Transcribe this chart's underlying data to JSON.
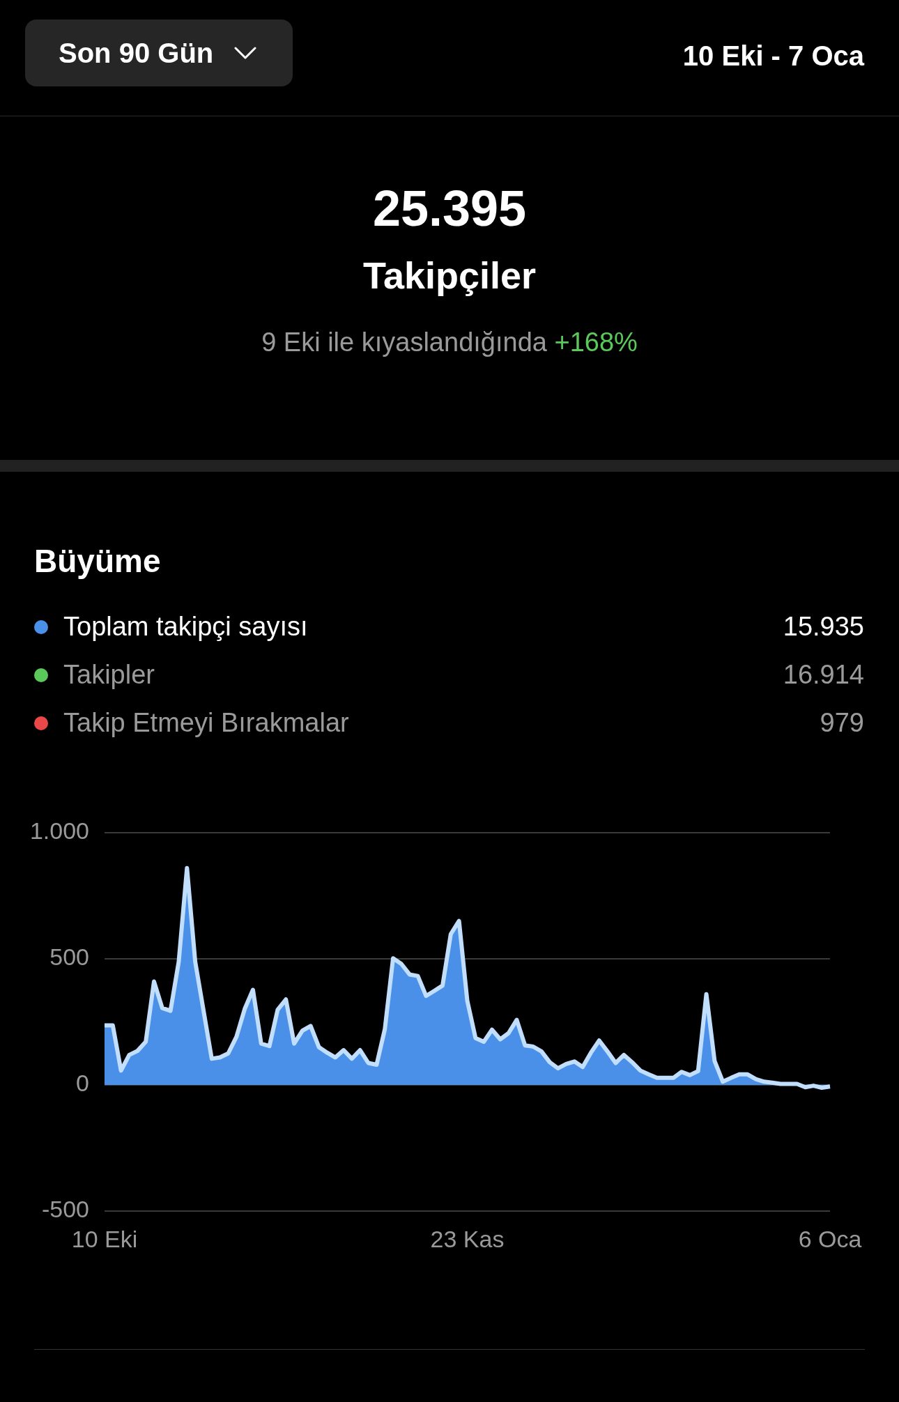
{
  "chart_data": {
    "type": "area",
    "title": "Büyüme",
    "annotations": [
      "Son 90 Gün",
      "10 Eki - 7 Oca",
      "25.395",
      "Takipçiler",
      "9 Eki ile kıyaslandığında +168%",
      "15.935",
      "16.914",
      "979"
    ],
    "categories": [
      "10 Eki",
      null,
      null,
      null,
      null,
      null,
      null,
      null,
      null,
      null,
      null,
      null,
      null,
      null,
      null,
      null,
      null,
      null,
      null,
      null,
      null,
      null,
      null,
      null,
      null,
      null,
      null,
      null,
      null,
      null,
      null,
      null,
      null,
      null,
      null,
      null,
      null,
      null,
      null,
      null,
      null,
      null,
      null,
      null,
      "23 Kas",
      null,
      null,
      null,
      null,
      null,
      null,
      null,
      null,
      null,
      null,
      null,
      null,
      null,
      null,
      null,
      null,
      null,
      null,
      null,
      null,
      null,
      null,
      null,
      null,
      null,
      null,
      null,
      null,
      null,
      null,
      null,
      null,
      null,
      null,
      null,
      null,
      null,
      null,
      null,
      null,
      null,
      null,
      null,
      "6 Oca"
    ],
    "series": [
      {
        "name": "Toplam takipçi sayısı",
        "color": "#4a90e8",
        "values": [
          236,
          236,
          57,
          119,
          135,
          171,
          410,
          305,
          294,
          488,
          860,
          488,
          296,
          104,
          109,
          125,
          191,
          301,
          377,
          164,
          154,
          298,
          339,
          164,
          215,
          234,
          150,
          128,
          109,
          138,
          104,
          138,
          87,
          80,
          221,
          502,
          480,
          438,
          432,
          353,
          373,
          394,
          598,
          650,
          334,
          186,
          171,
          219,
          181,
          205,
          258,
          157,
          152,
          133,
          90,
          66,
          83,
          93,
          71,
          128,
          176,
          133,
          87,
          119,
          90,
          57,
          42,
          28,
          28,
          28,
          52,
          39,
          55,
          360,
          95,
          13,
          28,
          42,
          42,
          23,
          13,
          9,
          4,
          4,
          4,
          -9,
          -3,
          -11,
          -6
        ]
      },
      {
        "name": "Takipler",
        "color": "#5ac85a",
        "values": [
          null,
          null,
          null,
          null,
          null,
          null,
          null,
          null,
          null,
          null,
          null,
          null,
          null,
          null,
          null,
          null,
          null,
          null,
          null,
          null,
          null,
          null,
          null,
          null,
          null,
          null,
          null,
          null,
          null,
          null,
          null,
          null,
          null,
          null,
          null,
          null,
          null,
          null,
          null,
          null,
          null,
          null,
          null,
          null,
          null,
          null,
          null,
          null,
          null,
          null,
          null,
          null,
          null,
          null,
          null,
          null,
          null,
          null,
          null,
          null,
          null,
          null,
          null,
          null,
          null,
          null,
          null,
          null,
          null,
          null,
          null,
          null,
          null,
          null,
          null,
          null,
          null,
          null,
          null,
          null,
          null,
          null,
          null,
          null,
          null,
          null,
          null,
          null,
          null
        ]
      },
      {
        "name": "Takip Etmeyi Bırakmalar",
        "color": "#e84848",
        "values": [
          null,
          null,
          null,
          null,
          null,
          null,
          null,
          null,
          null,
          null,
          null,
          null,
          null,
          null,
          null,
          null,
          null,
          null,
          null,
          null,
          null,
          null,
          null,
          null,
          null,
          null,
          null,
          null,
          null,
          null,
          null,
          null,
          null,
          null,
          null,
          null,
          null,
          null,
          null,
          null,
          null,
          null,
          null,
          null,
          null,
          null,
          null,
          null,
          null,
          null,
          null,
          null,
          null,
          null,
          null,
          null,
          null,
          null,
          null,
          null,
          null,
          null,
          null,
          null,
          null,
          null,
          null,
          null,
          null,
          null,
          null,
          null,
          null,
          null,
          null,
          null,
          null,
          null,
          null,
          null,
          null,
          null,
          null,
          null,
          null,
          null,
          null,
          null,
          null
        ]
      }
    ],
    "ylim": [
      -500,
      1000
    ],
    "yticks": [
      {
        "value": 1000,
        "label": "1.000"
      },
      500,
      0,
      -500
    ],
    "grid": "y",
    "legend": "top"
  }
}
